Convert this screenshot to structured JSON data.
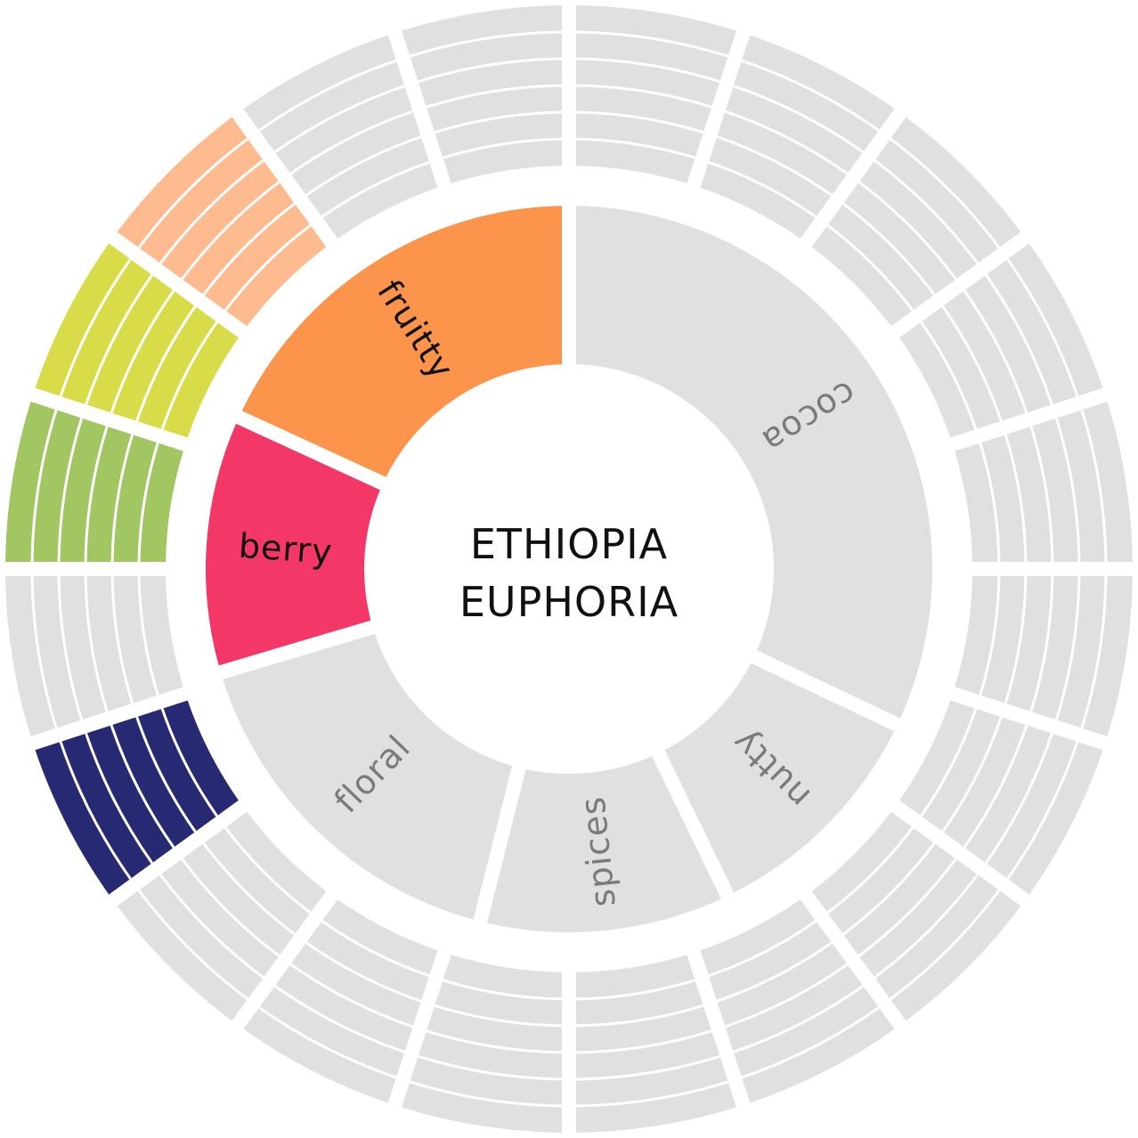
{
  "title": {
    "line1": "ETHIOPIA",
    "line2": "EUPHORIA",
    "color": "#111111"
  },
  "colors": {
    "inactive": "#e0e0e0",
    "inactive_label": "#7a7a7a",
    "active_label": "#111111",
    "background": "#ffffff"
  },
  "inner_ring": [
    {
      "label": "cocoa",
      "active": false,
      "color": "#e0e0e0",
      "share": 0.3205
    },
    {
      "label": "nutty",
      "active": false,
      "color": "#e0e0e0",
      "share": 0.1076
    },
    {
      "label": "spices",
      "active": false,
      "color": "#e0e0e0",
      "share": 0.1112
    },
    {
      "label": "floral",
      "active": false,
      "color": "#e0e0e0",
      "share": 0.1648
    },
    {
      "label": "berry",
      "active": true,
      "color": "#f33766",
      "share": 0.1145
    },
    {
      "label": "fruitty",
      "active": true,
      "color": "#fd944b",
      "share": 0.1814
    }
  ],
  "outer_ring": [
    {
      "color": "#e0e0e0",
      "active": false
    },
    {
      "color": "#e0e0e0",
      "active": false
    },
    {
      "color": "#e0e0e0",
      "active": false
    },
    {
      "color": "#e0e0e0",
      "active": false
    },
    {
      "color": "#e0e0e0",
      "active": false
    },
    {
      "color": "#e0e0e0",
      "active": false
    },
    {
      "color": "#e0e0e0",
      "active": false
    },
    {
      "color": "#e0e0e0",
      "active": false
    },
    {
      "color": "#e0e0e0",
      "active": false
    },
    {
      "color": "#e0e0e0",
      "active": false
    },
    {
      "color": "#e0e0e0",
      "active": false
    },
    {
      "color": "#e0e0e0",
      "active": false
    },
    {
      "color": "#e0e0e0",
      "active": false
    },
    {
      "color": "#272a73",
      "active": true
    },
    {
      "color": "#e0e0e0",
      "active": false
    },
    {
      "color": "#a2c661",
      "active": true
    },
    {
      "color": "#d8dc48",
      "active": true
    },
    {
      "color": "#fdbb8f",
      "active": true
    },
    {
      "color": "#e0e0e0",
      "active": false
    },
    {
      "color": "#e0e0e0",
      "active": false
    }
  ],
  "outer_ring_levels": 6
}
